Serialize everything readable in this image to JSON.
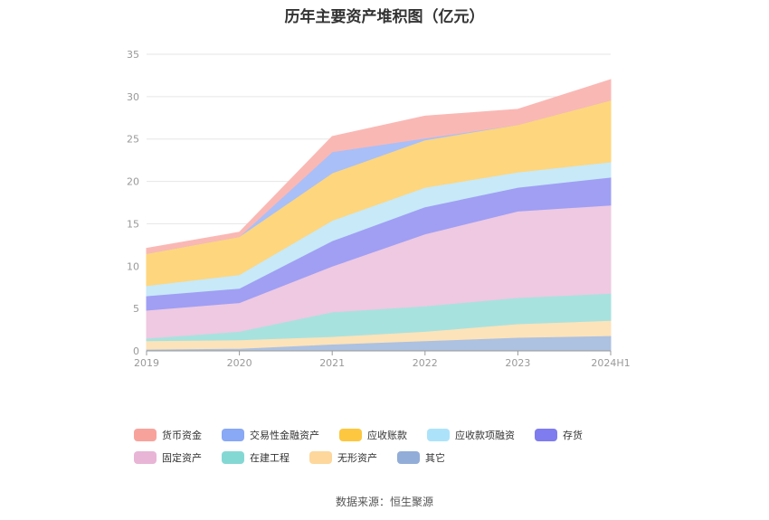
{
  "chart_data": {
    "type": "area",
    "stacked": true,
    "title": "历年主要资产堆积图（亿元）",
    "categories": [
      "2019",
      "2020",
      "2021",
      "2022",
      "2023",
      "2024H1"
    ],
    "ylim": [
      0,
      35
    ],
    "yticks": [
      0,
      5,
      10,
      15,
      20,
      25,
      30,
      35
    ],
    "grid": true,
    "legend_position": "bottom",
    "series": [
      {
        "name": "其它",
        "color": "#adc1e1",
        "values": [
          0.2,
          0.3,
          0.8,
          1.2,
          1.6,
          1.8
        ]
      },
      {
        "name": "无形资产",
        "color": "#fce3b9",
        "values": [
          1.0,
          1.0,
          0.9,
          1.1,
          1.6,
          1.8
        ]
      },
      {
        "name": "在建工程",
        "color": "#a8e2df",
        "values": [
          0.3,
          1.0,
          2.9,
          3.0,
          3.1,
          3.2
        ]
      },
      {
        "name": "固定资产",
        "color": "#eec9e1",
        "values": [
          3.3,
          3.4,
          5.4,
          8.5,
          10.2,
          10.4
        ]
      },
      {
        "name": "存货",
        "color": "#a09ff4",
        "values": [
          1.7,
          1.7,
          3.0,
          3.2,
          2.8,
          3.3
        ]
      },
      {
        "name": "应收款项融资",
        "color": "#c7e9f8",
        "values": [
          1.2,
          1.6,
          2.4,
          2.3,
          1.8,
          1.8
        ]
      },
      {
        "name": "应收账款",
        "color": "#fed67e",
        "values": [
          3.8,
          4.5,
          5.6,
          5.6,
          5.6,
          7.3
        ]
      },
      {
        "name": "交易性金融资产",
        "color": "#a9bff8",
        "values": [
          0.0,
          0.0,
          2.5,
          0.2,
          0.0,
          0.0
        ]
      },
      {
        "name": "货币资金",
        "color": "#fab8b4",
        "values": [
          0.6,
          0.5,
          1.8,
          2.6,
          1.8,
          2.4
        ]
      }
    ]
  },
  "legend": [
    {
      "label": "货币资金",
      "color": "#f7a39c"
    },
    {
      "label": "交易性金融资产",
      "color": "#89a8f5"
    },
    {
      "label": "应收账款",
      "color": "#fdc740"
    },
    {
      "label": "应收款项融资",
      "color": "#ace3fa"
    },
    {
      "label": "存货",
      "color": "#7e7cee"
    },
    {
      "label": "固定资产",
      "color": "#e8b5d6"
    },
    {
      "label": "在建工程",
      "color": "#84d8d4"
    },
    {
      "label": "无形资产",
      "color": "#fdd79c"
    },
    {
      "label": "其它",
      "color": "#92add8"
    }
  ],
  "source": "数据来源：恒生聚源"
}
